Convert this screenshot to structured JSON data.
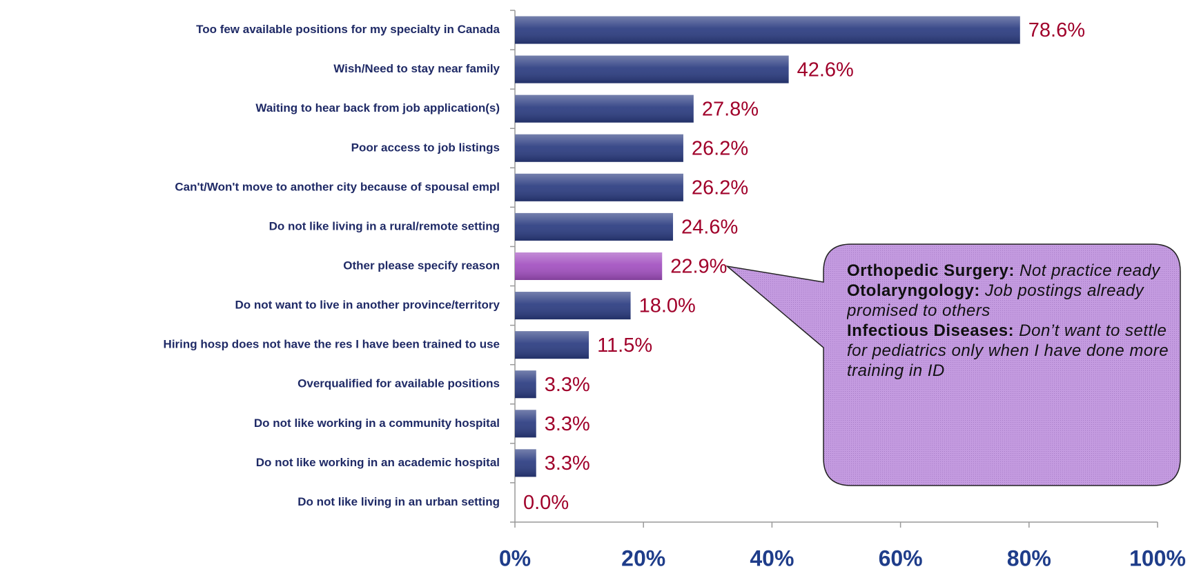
{
  "chart_data": {
    "type": "bar",
    "orientation": "horizontal",
    "categories": [
      "Too few available positions for my specialty in Canada",
      "Wish/Need to stay near family",
      "Waiting to hear back from job application(s)",
      "Poor access to job listings",
      "Can't/Won't move to another city because of spousal empl",
      "Do not like living in a rural/remote setting",
      "Other please specify reason",
      "Do not want to live in another province/territory",
      "Hiring hosp does not have the res I have been trained to use",
      "Overqualified for available positions",
      "Do not like working in a community hospital",
      "Do not like working in an academic hospital",
      "Do not like living in an urban setting"
    ],
    "values": [
      78.6,
      42.6,
      27.8,
      26.2,
      26.2,
      24.6,
      22.9,
      18.0,
      11.5,
      3.3,
      3.3,
      3.3,
      0.0
    ],
    "value_labels": [
      "78.6%",
      "42.6%",
      "27.8%",
      "26.2%",
      "26.2%",
      "24.6%",
      "22.9%",
      "18.0%",
      "11.5%",
      "3.3%",
      "3.3%",
      "3.3%",
      "0.0%"
    ],
    "colors": [
      "#2a3b80",
      "#2a3b80",
      "#2a3b80",
      "#2a3b80",
      "#2a3b80",
      "#2a3b80",
      "#a24fc0",
      "#2a3b80",
      "#2a3b80",
      "#2a3b80",
      "#2a3b80",
      "#2a3b80",
      "#2a3b80"
    ],
    "xlim": [
      0,
      100
    ],
    "xticks": [
      {
        "value": 0,
        "label": "0%"
      },
      {
        "value": 20,
        "label": "20%"
      },
      {
        "value": 40,
        "label": "40%"
      },
      {
        "value": 60,
        "label": "60%"
      },
      {
        "value": 80,
        "label": "80%"
      },
      {
        "value": 100,
        "label": "100%"
      }
    ],
    "annotation": {
      "target": 6,
      "items": [
        {
          "label": "Orthopedic Surgery:",
          "text": "Not practice ready"
        },
        {
          "label": "Otolaryngology:",
          "text": "Job postings already promised to others"
        },
        {
          "label": "Infectious Diseases:",
          "text": "Don’t want to settle for pediatrics only when I have done more training in ID"
        }
      ]
    }
  }
}
